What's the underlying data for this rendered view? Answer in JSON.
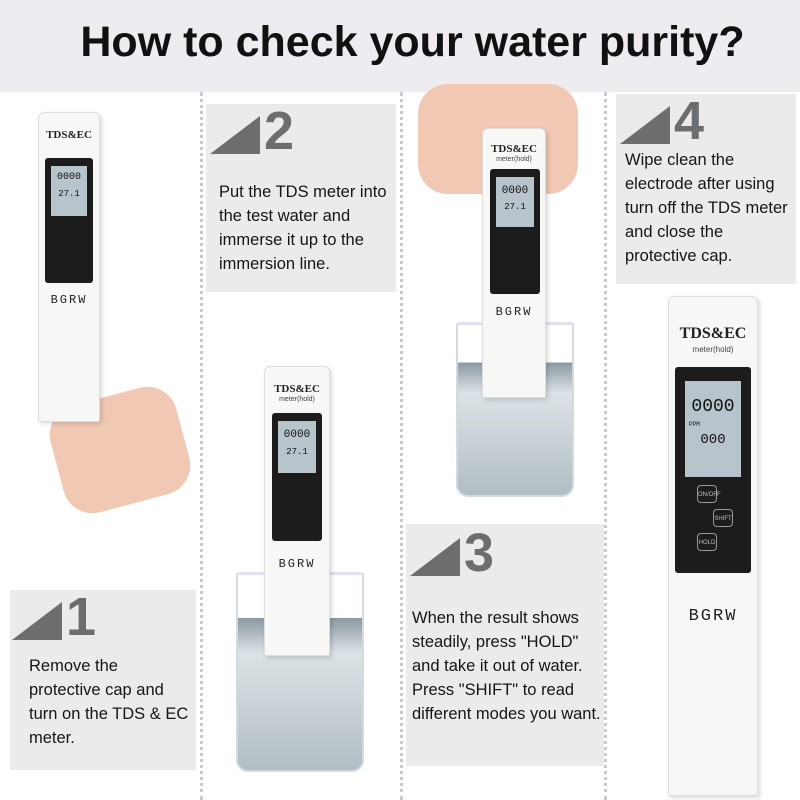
{
  "title": "How to check your water purity?",
  "steps": [
    {
      "number": "1",
      "text": "Remove the protective cap and turn on the TDS & EC meter."
    },
    {
      "number": "2",
      "text": "Put the TDS meter into the test water and immerse it up to the immersion line."
    },
    {
      "number": "3",
      "text": "When the result shows steadily, press \"HOLD\" and take it out of water. Press \"SHIFT\" to read different modes you want."
    },
    {
      "number": "4",
      "text": "Wipe clean the electrode after using turn off the TDS meter and close the protective cap."
    }
  ],
  "meter": {
    "brand": "TDS&EC",
    "subtitle": "meter(hold)",
    "reading": "0000",
    "unit": "PPM",
    "temp": "27.1",
    "temp_large": "000",
    "buttons": [
      "ON/OFF",
      "SHIFT",
      "HOLD"
    ],
    "logo": "BGRW"
  },
  "colors": {
    "band": "#eeebf1",
    "box": "#ebebeb",
    "accent": "#6b6d6f"
  }
}
